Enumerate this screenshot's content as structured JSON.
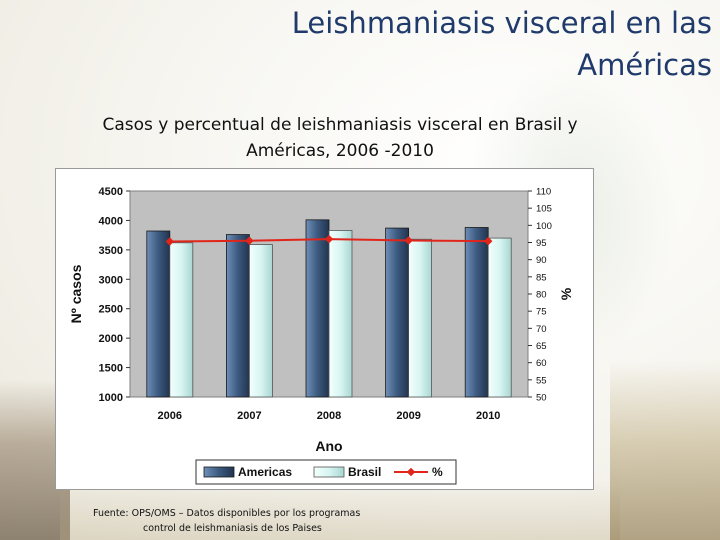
{
  "slide": {
    "title_line1": "Leishmaniasis visceral en las",
    "title_line2": "Américas",
    "subtitle_line1": "Casos y percentual de leishmaniasis visceral en Brasil y",
    "subtitle_line2": "Américas, 2006 -2010",
    "source_line1": "Fuente: OPS/OMS – Datos disponibles por los programas",
    "source_line2": "control de leishmaniasis de los Paises"
  },
  "chart_data": {
    "type": "bar",
    "categories": [
      "2006",
      "2007",
      "2008",
      "2009",
      "2010"
    ],
    "series": [
      {
        "name": "Americas",
        "type": "bar",
        "axis": "left",
        "color": "#3c5a80",
        "values": [
          3820,
          3760,
          4010,
          3870,
          3880
        ]
      },
      {
        "name": "Brasil",
        "type": "bar",
        "axis": "left",
        "color": "#d8f5f2",
        "values": [
          3620,
          3590,
          3830,
          3680,
          3700
        ]
      },
      {
        "name": "%",
        "type": "line",
        "axis": "right",
        "color": "#e0261b",
        "values": [
          95.3,
          95.5,
          96.0,
          95.6,
          95.4
        ]
      }
    ],
    "xlabel": "Ano",
    "ylabel": "Nº casos",
    "y2label": "%",
    "ylim": [
      1000,
      4500
    ],
    "yticks": [
      "1000",
      "1500",
      "2000",
      "2500",
      "3000",
      "3500",
      "4000",
      "4500"
    ],
    "y2lim": [
      50,
      110
    ],
    "y2ticks": [
      "50",
      "55",
      "60",
      "65",
      "70",
      "75",
      "80",
      "85",
      "90",
      "95",
      "100",
      "105",
      "110"
    ],
    "grid": false,
    "legend": "bottom"
  }
}
